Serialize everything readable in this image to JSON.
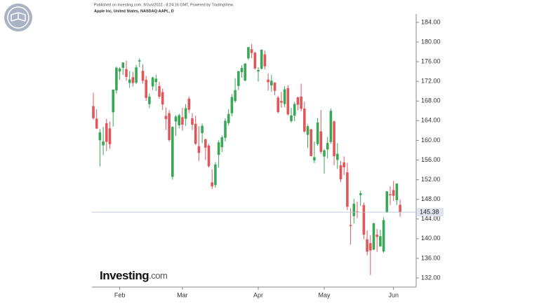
{
  "chart_data": {
    "type": "candlestick",
    "source_note": "Published on Investing.com, 9/Jun/2022 - 8:24:16 GMT, Powered by TradingView.",
    "subtitle": "Apple Inc, United States, NASDAQ:AAPL, D",
    "logo": {
      "brand": "Investing",
      "suffix": ".com"
    },
    "categories": [
      null,
      null,
      null,
      null,
      null,
      null,
      null,
      null,
      null,
      null,
      null,
      null,
      null,
      null,
      null,
      null,
      null,
      null,
      null,
      null,
      null,
      null,
      null,
      null,
      null,
      null,
      null,
      null,
      null,
      null,
      null,
      null,
      null,
      null,
      null,
      null,
      null,
      null,
      null,
      null,
      null,
      null,
      null,
      null,
      null,
      null,
      null,
      null,
      null,
      null,
      null,
      null,
      null,
      null,
      null,
      null,
      null,
      null,
      null,
      null,
      null,
      null,
      null,
      null,
      null,
      null,
      null,
      null,
      null,
      null,
      null,
      null,
      null,
      null,
      null,
      null,
      null,
      null,
      null,
      null,
      null,
      null,
      null,
      null,
      null,
      null,
      null,
      null,
      null,
      null,
      null,
      null,
      null,
      null
    ],
    "open": [
      166.98,
      164.42,
      160.02,
      158.98,
      163.5,
      162.45,
      165.71,
      170.16,
      174.01,
      174.75,
      174.48,
      171.68,
      172.86,
      171.73,
      176.05,
      174.14,
      172.33,
      167.37,
      170.97,
      171.85,
      171.03,
      169.82,
      164.98,
      165.54,
      152.58,
      163.84,
      163.06,
      164.7,
      164.39,
      168.47,
      164.49,
      163.36,
      158.82,
      161.48,
      160.2,
      158.93,
      151.45,
      150.9,
      157.05,
      158.61,
      160.51,
      163.51,
      165.51,
      167.99,
      171.06,
      173.88,
      172.17,
      176.69,
      178.55,
      177.84,
      174.03,
      174.57,
      177.5,
      172.36,
      171.16,
      171.78,
      168.71,
      168.02,
      167.39,
      170.62,
      163.92,
      165.02,
      168.76,
      168.91,
      166.46,
      161.12,
      162.25,
      155.91,
      159.25,
      161.84,
      156.71,
      158.15,
      159.67,
      163.85,
      156.01,
      154.93,
      155.52,
      153.5,
      142.77,
      144.59,
      145.55,
      148.86,
      146.85,
      139.88,
      139.09,
      137.79,
      140.81,
      138.43,
      137.39,
      145.39,
      149.07,
      149.9,
      147.83,
      146.9
    ],
    "high": [
      169.68,
      166.33,
      162.3,
      162.76,
      164.39,
      163.84,
      170.35,
      175.0,
      174.84,
      175.88,
      176.24,
      174.1,
      173.95,
      175.35,
      176.65,
      175.48,
      173.08,
      169.58,
      172.95,
      173.34,
      171.91,
      170.54,
      166.69,
      166.15,
      162.85,
      165.12,
      165.42,
      166.6,
      167.36,
      168.91,
      165.55,
      165.02,
      162.88,
      163.41,
      160.39,
      159.28,
      154.12,
      155.57,
      160.0,
      161.0,
      164.48,
      166.35,
      169.42,
      172.64,
      174.14,
      175.28,
      175.73,
      179.01,
      179.61,
      178.03,
      174.88,
      178.49,
      178.3,
      173.63,
      173.36,
      171.78,
      169.03,
      169.87,
      171.04,
      171.27,
      166.6,
      167.82,
      168.88,
      171.53,
      167.87,
      163.17,
      162.34,
      159.79,
      164.52,
      166.2,
      158.23,
      160.71,
      166.48,
      164.08,
      159.44,
      155.83,
      156.74,
      155.45,
      146.2,
      148.1,
      147.52,
      149.77,
      147.36,
      141.66,
      140.7,
      143.26,
      141.97,
      141.79,
      144.34,
      149.68,
      150.66,
      151.74,
      151.27,
      147.97
    ],
    "low": [
      164.18,
      162.3,
      154.7,
      157.02,
      157.82,
      158.28,
      162.8,
      169.51,
      172.31,
      173.33,
      172.12,
      170.68,
      170.95,
      171.43,
      174.9,
      171.55,
      168.04,
      166.56,
      170.25,
      170.05,
      168.47,
      166.19,
      162.15,
      159.75,
      152.0,
      160.87,
      162.43,
      161.97,
      162.95,
      165.55,
      162.1,
      159.04,
      155.8,
      159.41,
      155.98,
      154.5,
      150.1,
      150.38,
      154.46,
      157.63,
      159.76,
      163.01,
      164.91,
      167.65,
      170.21,
      172.75,
      172.0,
      176.34,
      176.7,
      174.4,
      171.94,
      174.44,
      174.42,
      170.13,
      169.85,
      169.2,
      165.5,
      166.64,
      166.77,
      165.04,
      163.57,
      163.91,
      166.1,
      165.91,
      161.5,
      158.46,
      156.72,
      155.38,
      158.93,
      157.25,
      153.27,
      156.32,
      159.26,
      154.95,
      154.18,
      151.49,
      152.93,
      145.81,
      138.8,
      143.11,
      144.18,
      146.68,
      139.9,
      136.6,
      132.61,
      137.65,
      137.33,
      138.34,
      137.14,
      145.26,
      146.84,
      147.68,
      146.86,
      144.46
    ],
    "close": [
      164.51,
      162.41,
      161.62,
      159.78,
      159.69,
      159.22,
      170.33,
      174.78,
      174.61,
      175.84,
      172.9,
      172.39,
      171.66,
      174.83,
      176.28,
      172.12,
      168.64,
      168.88,
      172.79,
      172.55,
      168.88,
      167.3,
      164.32,
      160.07,
      162.74,
      164.85,
      165.12,
      163.2,
      166.56,
      166.23,
      163.17,
      159.3,
      157.44,
      162.95,
      158.52,
      154.73,
      150.62,
      155.09,
      159.59,
      160.62,
      163.98,
      165.38,
      168.82,
      170.21,
      174.07,
      174.72,
      175.6,
      178.96,
      177.77,
      174.61,
      174.31,
      178.44,
      175.06,
      171.83,
      172.14,
      170.09,
      165.75,
      167.66,
      170.4,
      165.29,
      165.07,
      167.4,
      167.23,
      166.42,
      161.79,
      162.88,
      156.8,
      156.57,
      163.64,
      157.65,
      157.96,
      159.48,
      166.02,
      156.77,
      157.28,
      152.06,
      154.51,
      146.5,
      142.56,
      147.11,
      145.54,
      149.24,
      140.82,
      137.35,
      137.59,
      143.11,
      140.36,
      140.52,
      143.78,
      149.64,
      148.84,
      148.71,
      151.21,
      145.38
    ],
    "up_color": "#3aa757",
    "down_color": "#e0575b",
    "last_price": 145.38,
    "ylim": [
      130.15,
      185.42
    ],
    "yticks": [
      {
        "value": 132,
        "label": "132.00"
      },
      {
        "value": 136,
        "label": "136.00"
      },
      {
        "value": 140,
        "label": "140.00"
      },
      {
        "value": 144,
        "label": "144.00"
      },
      {
        "value": 148,
        "label": "148.00"
      },
      {
        "value": 152,
        "label": "152.00"
      },
      {
        "value": 156,
        "label": "156.00"
      },
      {
        "value": 160,
        "label": "160.00"
      },
      {
        "value": 164,
        "label": "164.00"
      },
      {
        "value": 168,
        "label": "168.00"
      },
      {
        "value": 172,
        "label": "172.00"
      },
      {
        "value": 176,
        "label": "176.00"
      },
      {
        "value": 180,
        "label": "180.00"
      },
      {
        "value": 184,
        "label": "184.00"
      }
    ],
    "xticks": [
      {
        "value": 8,
        "label": "Feb"
      },
      {
        "value": 27,
        "label": "Mar"
      },
      {
        "value": 50,
        "label": "Apr"
      },
      {
        "value": 70,
        "label": "May"
      },
      {
        "value": 91,
        "label": "Jun"
      }
    ]
  }
}
